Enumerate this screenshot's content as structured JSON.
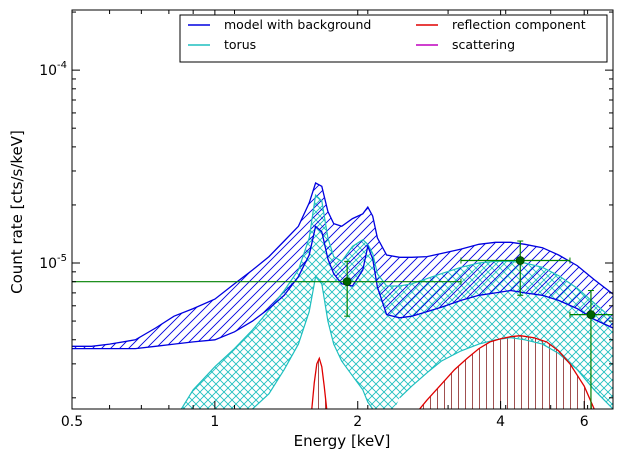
{
  "chart_data": {
    "type": "line",
    "xlabel": "Energy [keV]",
    "ylabel": "Count rate [cts/s/keV]",
    "x_scale": "log",
    "y_scale": "log",
    "xlim": [
      0.5,
      6.9
    ],
    "ylim": [
      1.75e-06,
      0.000205
    ],
    "x_ticks": [
      {
        "value": 0.5,
        "label": "0.5"
      },
      {
        "value": 1,
        "label": "1"
      },
      {
        "value": 2,
        "label": "2"
      },
      {
        "value": 4,
        "label": "4"
      },
      {
        "value": 6,
        "label": "6"
      }
    ],
    "y_ticks": [
      {
        "value": 1e-05,
        "base": "10",
        "exp": "-5"
      },
      {
        "value": 0.0001,
        "base": "10",
        "exp": "-4"
      }
    ],
    "legend": {
      "position": "top-right",
      "columns": 2,
      "entries": [
        {
          "label": "model with background",
          "color": "#0000e0"
        },
        {
          "label": "torus",
          "color": "#1fbfbf"
        },
        {
          "label": "reflection component",
          "color": "#e00000"
        },
        {
          "label": "scattering",
          "color": "#bf00bf"
        }
      ]
    },
    "series": [
      {
        "name": "model with background",
        "color": "#0000e0",
        "hatch": "diagonal",
        "x": [
          0.5,
          0.55,
          0.6,
          0.68,
          0.75,
          0.82,
          0.9,
          1.0,
          1.1,
          1.2,
          1.3,
          1.4,
          1.5,
          1.58,
          1.63,
          1.68,
          1.73,
          1.78,
          1.85,
          1.95,
          2.05,
          2.1,
          2.15,
          2.2,
          2.3,
          2.45,
          2.6,
          2.8,
          3.0,
          3.3,
          3.6,
          3.9,
          4.2,
          4.5,
          4.9,
          5.3,
          5.8,
          6.3,
          6.9
        ],
        "upper": [
          3.7e-06,
          3.7e-06,
          3.8e-06,
          4e-06,
          4.6e-06,
          5.3e-06,
          5.8e-06,
          6.5e-06,
          7.8e-06,
          9.2e-06,
          1.08e-05,
          1.3e-05,
          1.55e-05,
          2.05e-05,
          2.6e-05,
          2.5e-05,
          1.85e-05,
          1.6e-05,
          1.55e-05,
          1.7e-05,
          1.8e-05,
          1.95e-05,
          1.75e-05,
          1.35e-05,
          1.1e-05,
          1.07e-05,
          1.07e-05,
          1.08e-05,
          1.12e-05,
          1.18e-05,
          1.25e-05,
          1.28e-05,
          1.28e-05,
          1.25e-05,
          1.2e-05,
          1.1e-05,
          9.7e-06,
          8.2e-06,
          6.9e-06
        ],
        "lower": [
          3.6e-06,
          3.6e-06,
          3.6e-06,
          3.6e-06,
          3.7e-06,
          3.8e-06,
          3.9e-06,
          4e-06,
          4.4e-06,
          5e-06,
          5.8e-06,
          6.8e-06,
          8.5e-06,
          1.1e-05,
          1.55e-05,
          1.45e-05,
          1.05e-05,
          8.8e-06,
          7.8e-06,
          7.6e-06,
          9.2e-06,
          1.22e-05,
          1.05e-05,
          7.5e-06,
          5.4e-06,
          5.2e-06,
          5.3e-06,
          5.6e-06,
          5.9e-06,
          6.4e-06,
          6.8e-06,
          7e-06,
          7.2e-06,
          7e-06,
          6.8e-06,
          6.4e-06,
          5.8e-06,
          5.1e-06,
          4.6e-06
        ]
      },
      {
        "name": "torus",
        "color": "#1fbfbf",
        "hatch": "crosshatch",
        "x": [
          0.85,
          0.9,
          1.0,
          1.1,
          1.2,
          1.3,
          1.4,
          1.5,
          1.58,
          1.63,
          1.68,
          1.73,
          1.78,
          1.85,
          1.95,
          2.05,
          2.1,
          2.15,
          2.2,
          2.3,
          2.45,
          2.6,
          2.8,
          3.0,
          3.3,
          3.6,
          3.9,
          4.2,
          4.5,
          4.9,
          5.3,
          5.8,
          6.3,
          6.9
        ],
        "upper": [
          1.75e-06,
          2.2e-06,
          2.9e-06,
          3.6e-06,
          4.5e-06,
          5.7e-06,
          7.2e-06,
          9.2e-06,
          1.35e-05,
          2.25e-05,
          2.1e-05,
          1.35e-05,
          1.08e-05,
          1.02e-05,
          1.22e-05,
          1.32e-05,
          1.25e-05,
          1.12e-05,
          8.8e-06,
          7.6e-06,
          7.6e-06,
          7.8e-06,
          8.3e-06,
          8.8e-06,
          9.5e-06,
          1e-05,
          1.02e-05,
          1.02e-05,
          1e-05,
          9.5e-06,
          8.6e-06,
          7.4e-06,
          6.2e-06,
          5.1e-06
        ],
        "lower": [
          null,
          null,
          null,
          null,
          1.75e-06,
          2.1e-06,
          2.8e-06,
          3.8e-06,
          5.6e-06,
          8.5e-06,
          7.8e-06,
          5e-06,
          3.8e-06,
          3.1e-06,
          2.6e-06,
          2.2e-06,
          1.9e-06,
          1.75e-06,
          null,
          null,
          2e-06,
          2.3e-06,
          2.7e-06,
          3.1e-06,
          3.5e-06,
          3.8e-06,
          4e-06,
          4.1e-06,
          4e-06,
          3.8e-06,
          3.4e-06,
          2.8e-06,
          2.2e-06,
          1.75e-06
        ]
      },
      {
        "name": "reflection component",
        "color": "#e00000",
        "hatch": "vertical",
        "x": [
          2.7,
          2.8,
          3.0,
          3.2,
          3.4,
          3.6,
          3.8,
          4.0,
          4.2,
          4.4,
          4.7,
          5.0,
          5.3,
          5.6,
          6.0,
          6.3
        ],
        "upper": [
          1.75e-06,
          1.95e-06,
          2.35e-06,
          2.8e-06,
          3.2e-06,
          3.6e-06,
          3.9e-06,
          4.05e-06,
          4.15e-06,
          4.2e-06,
          4.1e-06,
          3.9e-06,
          3.5e-06,
          3e-06,
          2.3e-06,
          1.75e-06
        ],
        "peak_x": [
          1.6,
          1.62,
          1.64,
          1.66,
          1.68,
          1.7,
          1.72
        ],
        "peak_y": [
          1.75e-06,
          2.4e-06,
          3e-06,
          3.2e-06,
          2.9e-06,
          2.3e-06,
          1.75e-06
        ]
      },
      {
        "name": "data",
        "color": "#008000",
        "points": [
          {
            "x": 1.9,
            "y": 8e-06,
            "xerr": [
              0.5,
              3.3
            ],
            "yerr": [
              5.3e-06,
              1.02e-05
            ]
          },
          {
            "x": 4.4,
            "y": 1.03e-05,
            "xerr": [
              3.3,
              5.6
            ],
            "yerr": [
              6.8e-06,
              1.3e-05
            ]
          },
          {
            "x": 6.2,
            "y": 5.4e-06,
            "xerr": [
              5.6,
              6.9
            ],
            "yerr": [
              1.75e-06,
              7.2e-06
            ]
          }
        ]
      }
    ]
  }
}
